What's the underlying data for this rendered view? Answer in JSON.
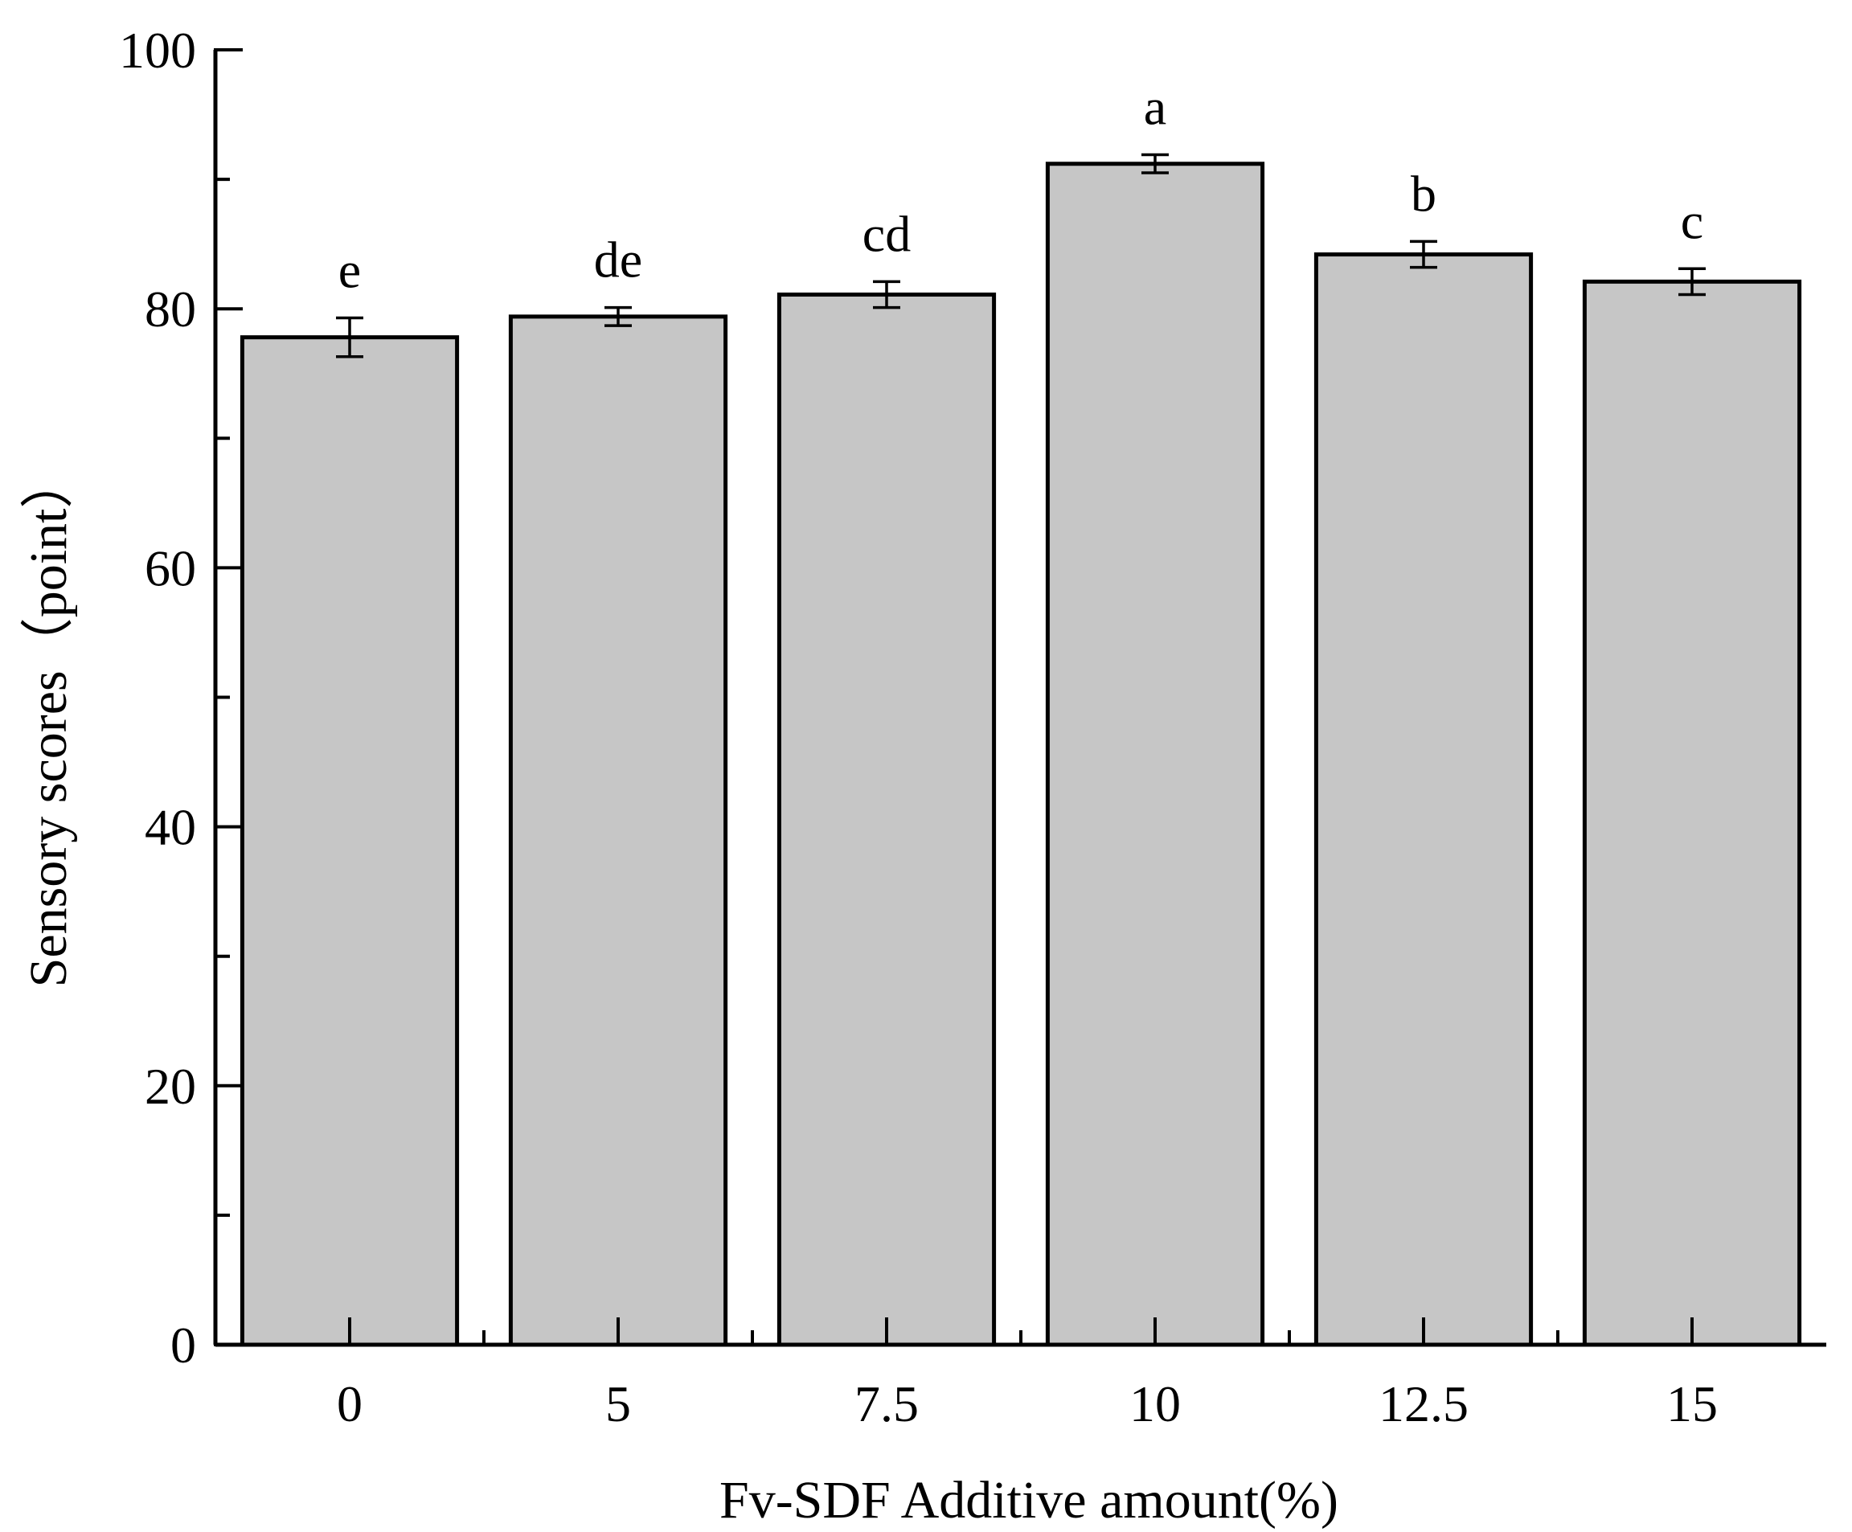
{
  "chart_data": {
    "type": "bar",
    "title": "",
    "xlabel": "Fv-SDF Additive amount(%)",
    "ylabel": "Sensory scores（point）",
    "categories": [
      "0",
      "5",
      "7.5",
      "10",
      "12.5",
      "15"
    ],
    "values": [
      77.8,
      79.4,
      81.1,
      91.2,
      84.2,
      82.1
    ],
    "errors": [
      1.5,
      0.7,
      1.0,
      0.7,
      1.0,
      1.0
    ],
    "significance_labels": [
      "e",
      "de",
      "cd",
      "a",
      "b",
      "c"
    ],
    "ylim": [
      0,
      100
    ],
    "yticks": [
      0,
      20,
      40,
      60,
      80,
      100
    ],
    "ytick_labels": [
      "0",
      "20",
      "40",
      "60",
      "80",
      "100"
    ],
    "grid": false,
    "legend": "none",
    "bar_color": "#c6c6c6",
    "edge_color": "#000000"
  }
}
